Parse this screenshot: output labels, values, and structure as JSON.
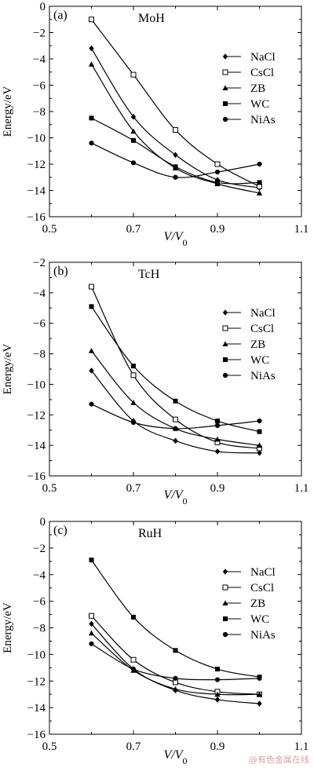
{
  "watermark": "@有色金属在线",
  "chart_data": [
    {
      "type": "line",
      "panel_label": "(a)",
      "title": "MoH",
      "xlabel": "V/V0",
      "ylabel": "Energy/eV",
      "xlim": [
        0.5,
        1.1
      ],
      "ylim": [
        -16,
        0
      ],
      "xticks": [
        0.5,
        0.7,
        0.9,
        1.1
      ],
      "yticks": [
        0,
        -2,
        -4,
        -6,
        -8,
        -10,
        -12,
        -14,
        -16
      ],
      "x": [
        0.6,
        0.7,
        0.8,
        0.9,
        1.0
      ],
      "grid": false,
      "legend_position": "right",
      "series": [
        {
          "name": "NaCl",
          "marker": "diamond-filled",
          "values": [
            -3.2,
            -8.4,
            -11.3,
            -13.2,
            -13.8
          ]
        },
        {
          "name": "CsCl",
          "marker": "square-open",
          "values": [
            -1.0,
            -5.2,
            -9.4,
            -12.0,
            -13.7
          ]
        },
        {
          "name": "ZB",
          "marker": "triangle-filled",
          "values": [
            -4.4,
            -9.5,
            -12.3,
            -13.5,
            -14.2
          ]
        },
        {
          "name": "WC",
          "marker": "square-filled",
          "values": [
            -8.5,
            -10.2,
            -12.2,
            -13.4,
            -13.4
          ]
        },
        {
          "name": "NiAs",
          "marker": "circle-filled",
          "values": [
            -10.4,
            -11.9,
            -13.0,
            -12.6,
            -12.0
          ]
        }
      ]
    },
    {
      "type": "line",
      "panel_label": "(b)",
      "title": "TcH",
      "xlabel": "V/V0",
      "ylabel": "Energy/eV",
      "xlim": [
        0.5,
        1.1
      ],
      "ylim": [
        -16,
        -2
      ],
      "xticks": [
        0.5,
        0.7,
        0.9,
        1.1
      ],
      "yticks": [
        -2,
        -4,
        -6,
        -8,
        -10,
        -12,
        -14,
        -16
      ],
      "x": [
        0.6,
        0.7,
        0.8,
        0.9,
        1.0
      ],
      "grid": false,
      "legend_position": "right",
      "series": [
        {
          "name": "NaCl",
          "marker": "diamond-filled",
          "values": [
            -9.1,
            -12.4,
            -13.7,
            -14.4,
            -14.5
          ]
        },
        {
          "name": "CsCl",
          "marker": "square-open",
          "values": [
            -3.6,
            -9.4,
            -12.3,
            -13.8,
            -14.2
          ]
        },
        {
          "name": "ZB",
          "marker": "triangle-filled",
          "values": [
            -7.8,
            -11.2,
            -12.9,
            -13.6,
            -14.0
          ]
        },
        {
          "name": "WC",
          "marker": "square-filled",
          "values": [
            -4.9,
            -8.8,
            -11.1,
            -12.4,
            -13.1
          ]
        },
        {
          "name": "NiAs",
          "marker": "circle-filled",
          "values": [
            -11.3,
            -12.5,
            -12.9,
            -12.7,
            -12.4
          ]
        }
      ]
    },
    {
      "type": "line",
      "panel_label": "(c)",
      "title": "RuH",
      "xlabel": "V/V0",
      "ylabel": "Energy/eV",
      "xlim": [
        0.5,
        1.1
      ],
      "ylim": [
        -16,
        0
      ],
      "xticks": [
        0.5,
        0.7,
        0.9,
        1.1
      ],
      "yticks": [
        0,
        -2,
        -4,
        -6,
        -8,
        -10,
        -12,
        -14,
        -16
      ],
      "x": [
        0.6,
        0.7,
        0.8,
        0.9,
        1.0
      ],
      "grid": false,
      "legend_position": "right",
      "series": [
        {
          "name": "NaCl",
          "marker": "diamond-filled",
          "values": [
            -7.7,
            -11.1,
            -12.7,
            -13.4,
            -13.7
          ]
        },
        {
          "name": "CsCl",
          "marker": "square-open",
          "values": [
            -7.1,
            -10.4,
            -12.1,
            -12.8,
            -13.0
          ]
        },
        {
          "name": "ZB",
          "marker": "triangle-filled",
          "values": [
            -8.4,
            -11.2,
            -12.6,
            -13.0,
            -13.0
          ]
        },
        {
          "name": "WC",
          "marker": "square-filled",
          "values": [
            -2.9,
            -7.2,
            -9.7,
            -11.1,
            -11.7
          ]
        },
        {
          "name": "NiAs",
          "marker": "circle-filled",
          "values": [
            -9.2,
            -11.1,
            -11.8,
            -11.9,
            -11.8
          ]
        }
      ]
    }
  ]
}
